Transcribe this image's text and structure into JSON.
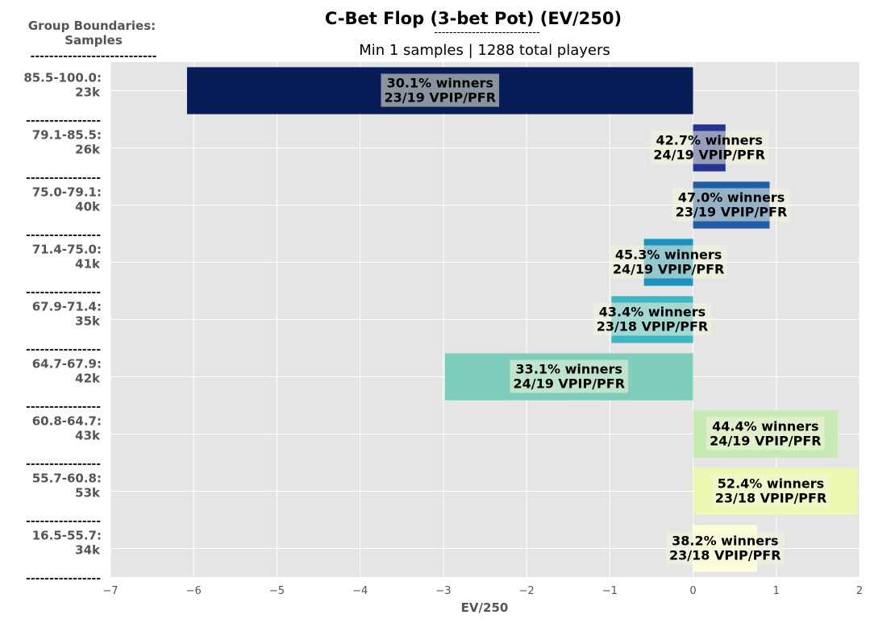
{
  "chart_data": {
    "type": "bar",
    "orientation": "horizontal",
    "title": "C-Bet Flop (3-bet Pot) (EV/250)",
    "title_underline": "----------------------------",
    "subtitle": "Min 1 samples | 1288 total players",
    "corner_label_line1": "Group Boundaries:",
    "corner_label_line2": "Samples",
    "corner_separator": "---------------------------",
    "group_separator": "----------------",
    "xlabel": "EV/250",
    "xlim": [
      -7,
      2
    ],
    "xticks": [
      {
        "value": -7,
        "label": "−7"
      },
      {
        "value": -6,
        "label": "−6"
      },
      {
        "value": -5,
        "label": "−5"
      },
      {
        "value": -4,
        "label": "−4"
      },
      {
        "value": -3,
        "label": "−3"
      },
      {
        "value": -2,
        "label": "−2"
      },
      {
        "value": -1,
        "label": "−1"
      },
      {
        "value": 0,
        "label": "0"
      },
      {
        "value": 1,
        "label": "1"
      },
      {
        "value": 2,
        "label": "2"
      }
    ],
    "grid": true,
    "background": "#e5e5e5",
    "bars": [
      {
        "range": "85.5-100.0:",
        "samples": "23k",
        "value": -6.08,
        "winners": "30.1% winners",
        "vpip": "23/19 VPIP/PFR",
        "color": "#081d58"
      },
      {
        "range": "79.1-85.5:",
        "samples": "26k",
        "value": 0.39,
        "winners": "42.7% winners",
        "vpip": "24/19 VPIP/PFR",
        "color": "#253494"
      },
      {
        "range": "75.0-79.1:",
        "samples": "40k",
        "value": 0.92,
        "winners": "47.0% winners",
        "vpip": "23/19 VPIP/PFR",
        "color": "#225ea8"
      },
      {
        "range": "71.4-75.0:",
        "samples": "41k",
        "value": -0.59,
        "winners": "45.3% winners",
        "vpip": "24/19 VPIP/PFR",
        "color": "#1d91c0"
      },
      {
        "range": "67.9-71.4:",
        "samples": "35k",
        "value": -0.98,
        "winners": "43.4% winners",
        "vpip": "23/18 VPIP/PFR",
        "color": "#41b6c4"
      },
      {
        "range": "64.7-67.9:",
        "samples": "42k",
        "value": -2.98,
        "winners": "33.1% winners",
        "vpip": "24/19 VPIP/PFR",
        "color": "#7fcdbb"
      },
      {
        "range": "60.8-64.7:",
        "samples": "43k",
        "value": 1.74,
        "winners": "44.4% winners",
        "vpip": "24/19 VPIP/PFR",
        "color": "#c7e9b4"
      },
      {
        "range": "55.7-60.8:",
        "samples": "53k",
        "value": 1.98,
        "winners": "52.4% winners",
        "vpip": "23/18 VPIP/PFR",
        "color": "#edf8b1"
      },
      {
        "range": "16.5-55.7:",
        "samples": "34k",
        "value": 0.77,
        "winners": "38.2% winners",
        "vpip": "23/18 VPIP/PFR",
        "color": "#ffffd9"
      }
    ]
  }
}
